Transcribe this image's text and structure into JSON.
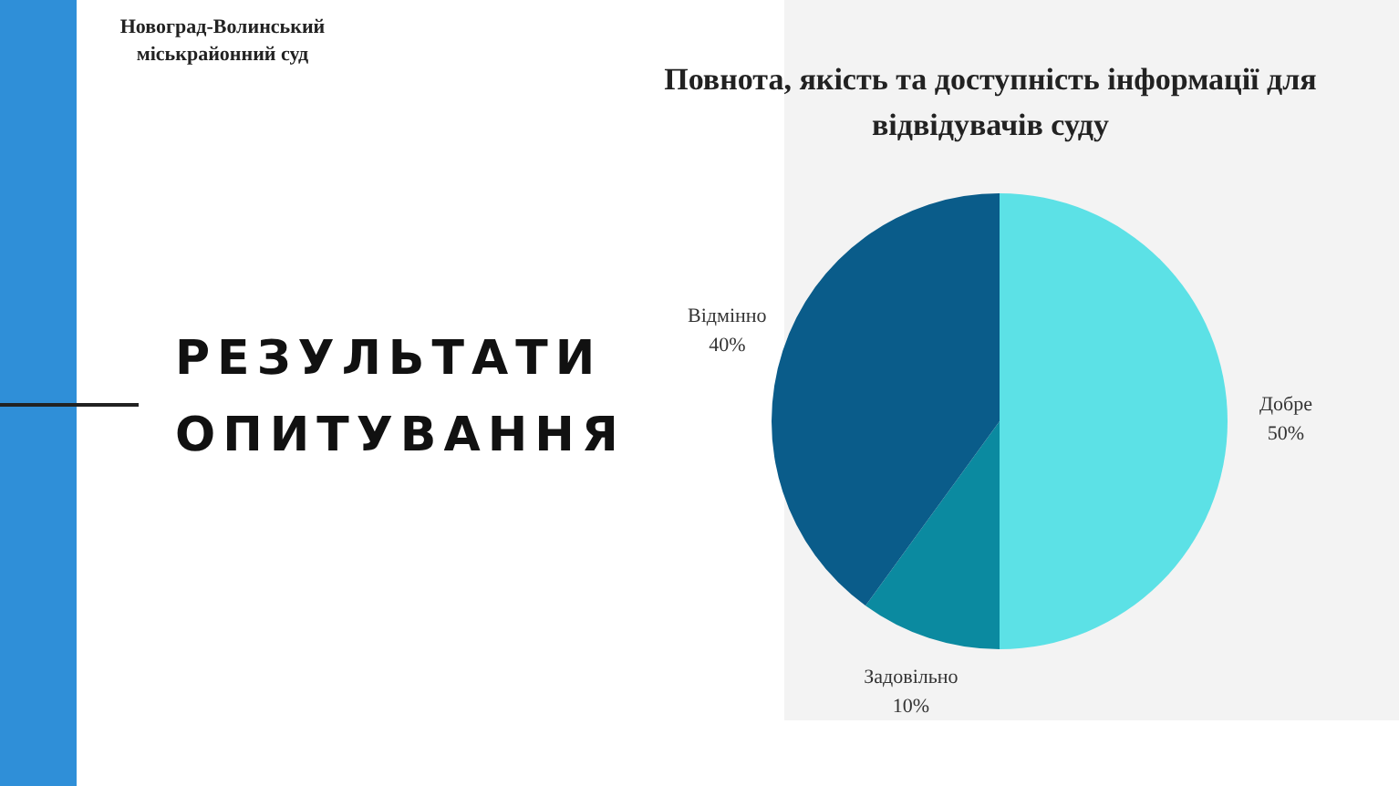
{
  "chart_data": {
    "type": "pie",
    "title": "Повнота, якість та доступність інформації для відвідувачів суду",
    "subtitle": "РЕЗУЛЬТАТИ ОПИТУВАННЯ",
    "annotations": [
      "Новоград-Волинський міськрайонний суд"
    ],
    "categories": [
      "Добре",
      "Задовільно",
      "Відмінно"
    ],
    "values": [
      50,
      10,
      40
    ],
    "value_labels": [
      "50%",
      "10%",
      "40%"
    ],
    "colors": [
      "#5ce1e6",
      "#0b8aa0",
      "#0a5c8a"
    ],
    "legend": false
  }
}
